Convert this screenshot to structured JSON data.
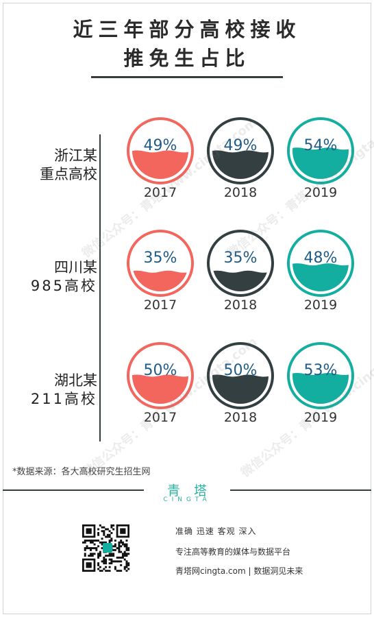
{
  "title": {
    "line1": "近三年部分高校接收",
    "line2": "推免生占比"
  },
  "chart_data": {
    "type": "table",
    "categories": [
      "2017",
      "2018",
      "2019"
    ],
    "series_colors": [
      "#f2665e",
      "#343f42",
      "#13aea0"
    ],
    "rows": [
      {
        "label_line1": "浙江某",
        "label_line2": "重点高校",
        "values": [
          49,
          49,
          54
        ],
        "value_labels": [
          "49%",
          "49%",
          "54%"
        ]
      },
      {
        "label_line1": "四川某",
        "label_line2": "985高校",
        "values": [
          35,
          35,
          48
        ],
        "value_labels": [
          "35%",
          "35%",
          "48%"
        ]
      },
      {
        "label_line1": "湖北某",
        "label_line2": "211高校",
        "values": [
          50,
          50,
          53
        ],
        "value_labels": [
          "50%",
          "50%",
          "53%"
        ]
      }
    ]
  },
  "source": "*数据来源：各大高校研究生招生网",
  "watermark": "微信公众号：青塔  www.cingta.com",
  "footer": {
    "brand_cn": "青塔",
    "brand_en": "CINGTA",
    "line1": "准确  迅速  客观  深入",
    "line2": "专注高等教育的媒体与数据平台",
    "line3": "青塔网cingta.com | 数据洞见未来"
  },
  "colors": {
    "accent": "#13aea0",
    "text": "#2b2b2b",
    "label_blue": "#1f5c86"
  }
}
